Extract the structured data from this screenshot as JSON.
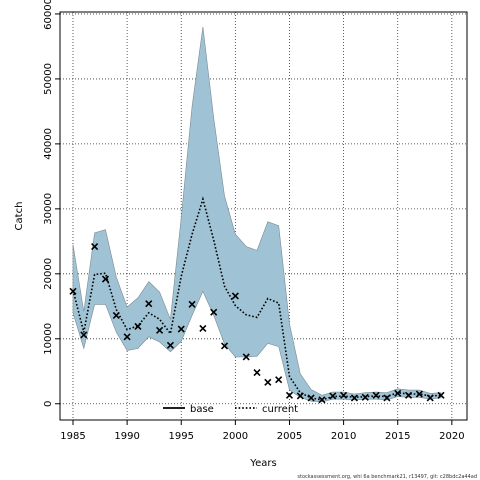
{
  "chart_data": {
    "type": "line",
    "xlabel": "Years",
    "ylabel": "Catch",
    "xlim": [
      1983.8,
      2021.4
    ],
    "ylim": [
      -2500,
      60300
    ],
    "xticks": [
      1985,
      1990,
      1995,
      2000,
      2005,
      2010,
      2015,
      2020
    ],
    "yticks": [
      0,
      10000,
      20000,
      30000,
      40000,
      50000,
      60000
    ],
    "grid": true,
    "legend": {
      "position": "bottom-center",
      "entries": [
        {
          "name": "base",
          "style": "solid",
          "color": "#000000"
        },
        {
          "name": "current",
          "style": "dotted",
          "color": "#000000"
        }
      ]
    },
    "colors": {
      "band_fill": "#9fc3d4",
      "band_stroke": "#7a8a92",
      "line": "#000000",
      "points": "#000000"
    },
    "series": [
      {
        "name": "current",
        "kind": "dotted-line",
        "x": [
          1985,
          1986,
          1987,
          1988,
          1989,
          1990,
          1991,
          1992,
          1993,
          1994,
          1995,
          1996,
          1997,
          1998,
          1999,
          2000,
          2001,
          2002,
          2003,
          2004,
          2005,
          2006,
          2007,
          2008,
          2009,
          2010,
          2011,
          2012,
          2013,
          2014,
          2015,
          2016,
          2017,
          2018,
          2019
        ],
        "y": [
          17500,
          11000,
          19900,
          20100,
          14500,
          11400,
          12000,
          14000,
          13000,
          10800,
          19600,
          26100,
          31500,
          25200,
          18100,
          15100,
          13700,
          13300,
          16200,
          15500,
          4200,
          1700,
          900,
          600,
          1100,
          1200,
          1000,
          1100,
          1200,
          1100,
          1700,
          1500,
          1500,
          1200,
          1300
        ]
      },
      {
        "name": "observed",
        "kind": "points",
        "marker": "x",
        "x": [
          1985,
          1986,
          1987,
          1988,
          1989,
          1990,
          1991,
          1992,
          1993,
          1994,
          1995,
          1996,
          1997,
          1998,
          1999,
          2000,
          2001,
          2002,
          2003,
          2004,
          2005,
          2006,
          2007,
          2008,
          2009,
          2010,
          2011,
          2012,
          2013,
          2014,
          2015,
          2016,
          2017,
          2018,
          2019
        ],
        "y": [
          17300,
          10600,
          24200,
          19200,
          13600,
          10300,
          11900,
          15400,
          11300,
          9000,
          11500,
          15300,
          11600,
          14100,
          8900,
          16600,
          7200,
          4800,
          3300,
          3700,
          1300,
          1200,
          900,
          600,
          1200,
          1300,
          900,
          1000,
          1300,
          900,
          1600,
          1300,
          1500,
          900,
          1300
        ]
      }
    ],
    "band": {
      "name": "uncertainty",
      "x": [
        1985,
        1986,
        1987,
        1988,
        1989,
        1990,
        1991,
        1992,
        1993,
        1994,
        1995,
        1996,
        1997,
        1998,
        1999,
        2000,
        2001,
        2002,
        2003,
        2004,
        2005,
        2006,
        2007,
        2008,
        2009,
        2010,
        2011,
        2012,
        2013,
        2014,
        2015,
        2016,
        2017,
        2018,
        2019
      ],
      "upper": [
        24500,
        14200,
        26300,
        26800,
        19500,
        14900,
        16300,
        18800,
        17200,
        13000,
        28600,
        45800,
        58000,
        44000,
        32000,
        26100,
        24200,
        23600,
        28000,
        27400,
        12300,
        4600,
        2200,
        1300,
        1800,
        1800,
        1500,
        1700,
        1800,
        1700,
        2300,
        2100,
        2100,
        1600,
        1700
      ],
      "lower": [
        14000,
        8500,
        15300,
        15300,
        11000,
        8200,
        8500,
        10300,
        9500,
        8000,
        9600,
        13600,
        17300,
        13600,
        9200,
        7200,
        7200,
        7300,
        9300,
        8800,
        2100,
        1000,
        400,
        300,
        700,
        700,
        600,
        700,
        700,
        600,
        1100,
        1000,
        1000,
        700,
        900
      ]
    },
    "footer_note": "stockassessment.org, whi 6a benchmark21, r13497, git: c28bdc2a44ad"
  }
}
